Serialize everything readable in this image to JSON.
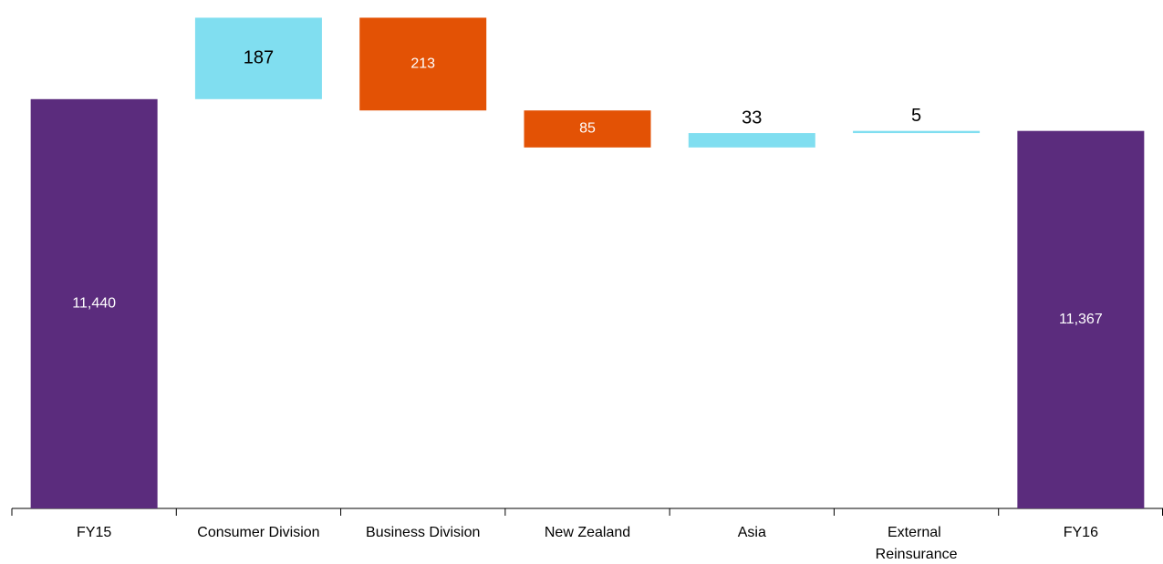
{
  "chart_data": {
    "type": "waterfall",
    "categories": [
      "FY15",
      "Consumer Division",
      "Business Division",
      "New Zealand",
      "Asia",
      "External Reinsurance",
      "FY16"
    ],
    "values": [
      11440,
      187,
      -213,
      -85,
      33,
      5,
      11367
    ],
    "value_labels": [
      "11,440",
      "187",
      "213",
      "85",
      "33",
      "5",
      "11,367"
    ],
    "color_total": "#5b2c7d",
    "color_increase": "#80def0",
    "color_decrease": "#e35205",
    "ylim": [
      10500,
      11630
    ]
  }
}
